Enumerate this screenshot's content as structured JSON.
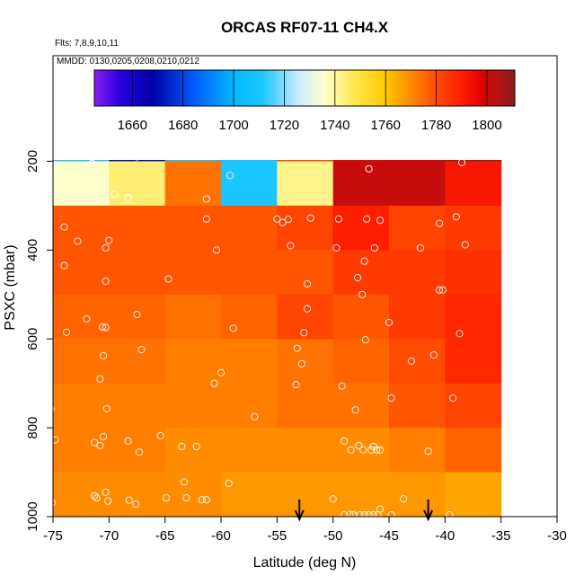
{
  "chart_data": {
    "type": "heatmap",
    "title": "ORCAS RF07-11 CH4.X",
    "flights_label": "Flts: 7,8,9,10,11",
    "dates_label": "MMDD: 0130,0205,0208,0210,0212",
    "xlabel": "Latitude (deg N)",
    "ylabel": "PSXC (mbar)",
    "xlim": [
      -75,
      -30
    ],
    "ylim": [
      1000,
      100
    ],
    "x_ticks": [
      -75,
      -70,
      -65,
      -60,
      -55,
      -50,
      -45,
      -40,
      -35,
      -30
    ],
    "y_ticks": [
      200,
      400,
      600,
      800,
      1000
    ],
    "lat_bins": [
      -75,
      -70,
      -65,
      -60,
      -55,
      -50,
      -45,
      -40,
      -35
    ],
    "pressure_bins": [
      100,
      200,
      300,
      400,
      500,
      600,
      700,
      800,
      900,
      1000
    ],
    "cell_values": [
      [
        1708,
        1668,
        1708,
        1708,
        1782,
        1796,
        1798,
        1808
      ],
      [
        1736,
        1744,
        1774,
        1710,
        1742,
        1802,
        1802,
        1792
      ],
      [
        1778,
        1778,
        1778,
        1778,
        1782,
        1790,
        1782,
        1784
      ],
      [
        1778,
        1778,
        1778,
        1778,
        1778,
        1784,
        1784,
        1786
      ],
      [
        1776,
        1776,
        1774,
        1776,
        1782,
        1778,
        1784,
        1788
      ],
      [
        1774,
        1774,
        1772,
        1772,
        1774,
        1776,
        1780,
        1788
      ],
      [
        1772,
        1772,
        1772,
        1772,
        1774,
        1774,
        1778,
        1782
      ],
      [
        1772,
        1772,
        1770,
        1770,
        1770,
        1770,
        1772,
        1776
      ],
      [
        1770,
        1770,
        1770,
        1768,
        1768,
        1768,
        1768,
        1766
      ]
    ],
    "colorbar": {
      "min": 1645,
      "max": 1811,
      "ticks": [
        1660,
        1680,
        1700,
        1720,
        1740,
        1760,
        1780,
        1800
      ],
      "stops": [
        {
          "v": 1645,
          "c": "#8b1cf0"
        },
        {
          "v": 1655,
          "c": "#2a00e0"
        },
        {
          "v": 1668,
          "c": "#0000a8"
        },
        {
          "v": 1685,
          "c": "#0060ff"
        },
        {
          "v": 1700,
          "c": "#00b8ff"
        },
        {
          "v": 1712,
          "c": "#20c8ff"
        },
        {
          "v": 1726,
          "c": "#cfeeff"
        },
        {
          "v": 1736,
          "c": "#ffffcc"
        },
        {
          "v": 1748,
          "c": "#ffe84a"
        },
        {
          "v": 1760,
          "c": "#ffc800"
        },
        {
          "v": 1770,
          "c": "#ff8c00"
        },
        {
          "v": 1778,
          "c": "#ff5500"
        },
        {
          "v": 1790,
          "c": "#ff1e00"
        },
        {
          "v": 1798,
          "c": "#e00000"
        },
        {
          "v": 1804,
          "c": "#b81414"
        },
        {
          "v": 1811,
          "c": "#8b1a1a"
        }
      ]
    },
    "sample_points": [
      [
        -71.5,
        205
      ],
      [
        -67.5,
        190
      ],
      [
        -65.3,
        178
      ],
      [
        -62.8,
        188
      ],
      [
        -59.5,
        188
      ],
      [
        -57,
        188
      ],
      [
        -56.5,
        182
      ],
      [
        -56,
        186
      ],
      [
        -50.5,
        188
      ],
      [
        -50,
        180
      ],
      [
        -47.5,
        188
      ],
      [
        -47,
        188
      ],
      [
        -46.8,
        217
      ],
      [
        -38.5,
        203
      ],
      [
        -36.5,
        189
      ],
      [
        -36.2,
        187
      ],
      [
        -35.6,
        187
      ],
      [
        -35.1,
        187
      ],
      [
        -69.5,
        275
      ],
      [
        -68.3,
        282
      ],
      [
        -61.3,
        285
      ],
      [
        -59.2,
        232
      ],
      [
        -61.3,
        330
      ],
      [
        -55,
        330
      ],
      [
        -54.5,
        338
      ],
      [
        -54,
        331
      ],
      [
        -52,
        328
      ],
      [
        -49.5,
        330
      ],
      [
        -47,
        330
      ],
      [
        -45.8,
        333
      ],
      [
        -40.5,
        340
      ],
      [
        -39,
        325
      ],
      [
        -74,
        348
      ],
      [
        -72.8,
        380
      ],
      [
        -70,
        378
      ],
      [
        -70.3,
        395
      ],
      [
        -60.4,
        400
      ],
      [
        -53.8,
        390
      ],
      [
        -49.7,
        395
      ],
      [
        -46.3,
        395
      ],
      [
        -42.2,
        395
      ],
      [
        -38.2,
        388
      ],
      [
        -74,
        435
      ],
      [
        -70.3,
        470
      ],
      [
        -64.7,
        465
      ],
      [
        -52.3,
        476
      ],
      [
        -47.8,
        462
      ],
      [
        -47.2,
        425
      ],
      [
        -40.5,
        490
      ],
      [
        -40.2,
        490
      ],
      [
        -47.4,
        500
      ],
      [
        -72,
        555
      ],
      [
        -67.5,
        545
      ],
      [
        -70.6,
        573
      ],
      [
        -70.3,
        574
      ],
      [
        -73.8,
        585
      ],
      [
        -58.9,
        576
      ],
      [
        -52.3,
        532
      ],
      [
        -52.6,
        586
      ],
      [
        -47.1,
        602
      ],
      [
        -45,
        563
      ],
      [
        -38.7,
        588
      ],
      [
        -67.1,
        624
      ],
      [
        -70.5,
        638
      ],
      [
        -53.2,
        621
      ],
      [
        -52.8,
        656
      ],
      [
        -43,
        650
      ],
      [
        -41,
        636
      ],
      [
        -70.8,
        690
      ],
      [
        -60.6,
        700
      ],
      [
        -60,
        676
      ],
      [
        -53.3,
        703
      ],
      [
        -49.2,
        706
      ],
      [
        -75.2,
        758
      ],
      [
        -70.2,
        757
      ],
      [
        -57,
        775
      ],
      [
        -48,
        760
      ],
      [
        -44.8,
        733
      ],
      [
        -39.3,
        733
      ],
      [
        -74.8,
        827
      ],
      [
        -71.3,
        833
      ],
      [
        -70.5,
        820
      ],
      [
        -70.8,
        840
      ],
      [
        -68.3,
        830
      ],
      [
        -67.3,
        855
      ],
      [
        -65.4,
        818
      ],
      [
        -63.5,
        842
      ],
      [
        -62.2,
        842
      ],
      [
        -49,
        830
      ],
      [
        -48.4,
        850
      ],
      [
        -47.7,
        840
      ],
      [
        -47.3,
        850
      ],
      [
        -46.6,
        850
      ],
      [
        -46.4,
        842
      ],
      [
        -46.1,
        850
      ],
      [
        -45.8,
        850
      ],
      [
        -41.5,
        853
      ],
      [
        -75.1,
        968
      ],
      [
        -71.3,
        953
      ],
      [
        -71.1,
        958
      ],
      [
        -70.1,
        965
      ],
      [
        -70.3,
        945
      ],
      [
        -68.2,
        963
      ],
      [
        -67.6,
        972
      ],
      [
        -64.9,
        958
      ],
      [
        -63.1,
        958
      ],
      [
        -63.3,
        922
      ],
      [
        -61.7,
        962
      ],
      [
        -61.3,
        962
      ],
      [
        -59.3,
        925
      ],
      [
        -50,
        960
      ],
      [
        -49,
        1002
      ],
      [
        -48.5,
        995
      ],
      [
        -48.2,
        1002
      ],
      [
        -47.6,
        1003
      ],
      [
        -47.2,
        1003
      ],
      [
        -46.8,
        1003
      ],
      [
        -46.4,
        1003
      ],
      [
        -46,
        1003
      ],
      [
        -45.8,
        983
      ],
      [
        -44.8,
        1000
      ],
      [
        -43.7,
        960
      ],
      [
        -39.6,
        1005
      ]
    ],
    "arrow_markers": [
      -53,
      -41.5
    ]
  }
}
